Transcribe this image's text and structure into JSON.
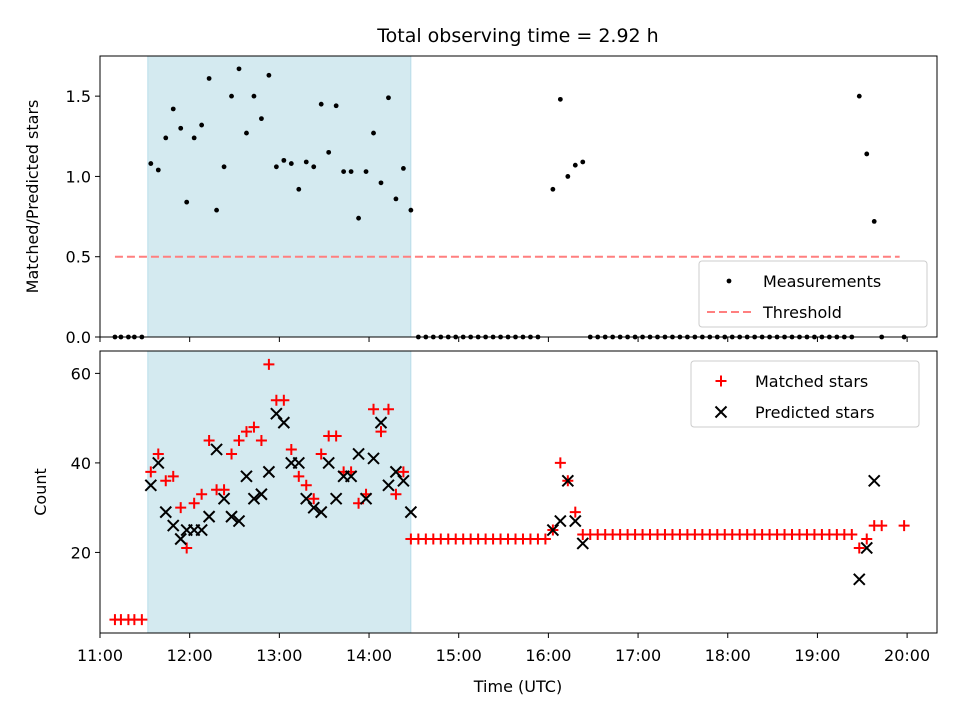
{
  "title": "Total observing time = 2.92 h",
  "xlabel": "Time (UTC)",
  "highlight_color": "#d4eaf0",
  "chart_data": [
    {
      "type": "scatter",
      "ylabel": "Matched/Predicted stars",
      "xlim": [
        "11:00",
        "20:20"
      ],
      "ylim": [
        0,
        1.75
      ],
      "yticks": [
        "0.0",
        "0.5",
        "1.0",
        "1.5"
      ],
      "xticks": [
        "11:00",
        "12:00",
        "13:00",
        "14:00",
        "15:00",
        "16:00",
        "17:00",
        "18:00",
        "19:00",
        "20:00"
      ],
      "highlight_span": [
        "11:32",
        "14:28"
      ],
      "legend_position": "lower right",
      "series": [
        {
          "name": "Measurements",
          "marker": "dot",
          "color": "#000000",
          "points": [
            [
              "11:10",
              0
            ],
            [
              "11:14",
              0
            ],
            [
              "11:19",
              0
            ],
            [
              "11:23",
              0
            ],
            [
              "11:28",
              0
            ],
            [
              "11:34",
              1.08
            ],
            [
              "11:39",
              1.04
            ],
            [
              "11:44",
              1.24
            ],
            [
              "11:49",
              1.42
            ],
            [
              "11:54",
              1.3
            ],
            [
              "11:58",
              0.84
            ],
            [
              "12:03",
              1.24
            ],
            [
              "12:08",
              1.32
            ],
            [
              "12:13",
              1.61
            ],
            [
              "12:18",
              0.79
            ],
            [
              "12:23",
              1.06
            ],
            [
              "12:28",
              1.5
            ],
            [
              "12:33",
              1.67
            ],
            [
              "12:38",
              1.27
            ],
            [
              "12:43",
              1.5
            ],
            [
              "12:48",
              1.36
            ],
            [
              "12:53",
              1.63
            ],
            [
              "12:58",
              1.06
            ],
            [
              "13:03",
              1.1
            ],
            [
              "13:08",
              1.08
            ],
            [
              "13:13",
              0.92
            ],
            [
              "13:18",
              1.09
            ],
            [
              "13:23",
              1.06
            ],
            [
              "13:28",
              1.45
            ],
            [
              "13:33",
              1.15
            ],
            [
              "13:38",
              1.44
            ],
            [
              "13:43",
              1.03
            ],
            [
              "13:48",
              1.03
            ],
            [
              "13:53",
              0.74
            ],
            [
              "13:58",
              1.03
            ],
            [
              "14:03",
              1.27
            ],
            [
              "14:08",
              0.96
            ],
            [
              "14:13",
              1.49
            ],
            [
              "14:18",
              0.86
            ],
            [
              "14:23",
              1.05
            ],
            [
              "14:28",
              0.79
            ],
            [
              "14:33",
              0
            ],
            [
              "14:38",
              0
            ],
            [
              "14:43",
              0
            ],
            [
              "14:48",
              0
            ],
            [
              "14:53",
              0
            ],
            [
              "14:58",
              0
            ],
            [
              "15:03",
              0
            ],
            [
              "15:08",
              0
            ],
            [
              "15:13",
              0
            ],
            [
              "15:18",
              0
            ],
            [
              "15:23",
              0
            ],
            [
              "15:28",
              0
            ],
            [
              "15:33",
              0
            ],
            [
              "15:38",
              0
            ],
            [
              "15:43",
              0
            ],
            [
              "15:48",
              0
            ],
            [
              "15:53",
              0
            ],
            [
              "16:03",
              0.92
            ],
            [
              "16:08",
              1.48
            ],
            [
              "16:13",
              1.0
            ],
            [
              "16:18",
              1.07
            ],
            [
              "16:23",
              1.09
            ],
            [
              "16:28",
              0
            ],
            [
              "16:33",
              0
            ],
            [
              "16:38",
              0
            ],
            [
              "16:43",
              0
            ],
            [
              "16:48",
              0
            ],
            [
              "16:53",
              0
            ],
            [
              "16:58",
              0
            ],
            [
              "17:03",
              0
            ],
            [
              "17:08",
              0
            ],
            [
              "17:13",
              0
            ],
            [
              "17:18",
              0
            ],
            [
              "17:23",
              0
            ],
            [
              "17:28",
              0
            ],
            [
              "17:33",
              0
            ],
            [
              "17:38",
              0
            ],
            [
              "17:43",
              0
            ],
            [
              "17:48",
              0
            ],
            [
              "17:53",
              0
            ],
            [
              "17:58",
              0
            ],
            [
              "18:03",
              0
            ],
            [
              "18:08",
              0
            ],
            [
              "18:13",
              0
            ],
            [
              "18:18",
              0
            ],
            [
              "18:23",
              0
            ],
            [
              "18:28",
              0
            ],
            [
              "18:33",
              0
            ],
            [
              "18:38",
              0
            ],
            [
              "18:43",
              0
            ],
            [
              "18:48",
              0
            ],
            [
              "18:53",
              0
            ],
            [
              "18:58",
              0
            ],
            [
              "19:03",
              0
            ],
            [
              "19:08",
              0
            ],
            [
              "19:13",
              0
            ],
            [
              "19:18",
              0
            ],
            [
              "19:23",
              0
            ],
            [
              "19:28",
              1.5
            ],
            [
              "19:33",
              1.14
            ],
            [
              "19:38",
              0.72
            ],
            [
              "19:43",
              0
            ],
            [
              "19:58",
              0
            ]
          ]
        },
        {
          "name": "Threshold",
          "marker": "dashed-line",
          "color": "#ff7f7f",
          "points": [
            [
              "11:10",
              0.5
            ],
            [
              "19:55",
              0.5
            ]
          ]
        }
      ]
    },
    {
      "type": "scatter",
      "ylabel": "Count",
      "xlabel": "Time (UTC)",
      "xlim": [
        "11:00",
        "20:20"
      ],
      "ylim": [
        2,
        65
      ],
      "yticks": [
        "20",
        "40",
        "60"
      ],
      "xticks": [
        "11:00",
        "12:00",
        "13:00",
        "14:00",
        "15:00",
        "16:00",
        "17:00",
        "18:00",
        "19:00",
        "20:00"
      ],
      "highlight_span": [
        "11:32",
        "14:28"
      ],
      "legend_position": "upper right",
      "series": [
        {
          "name": "Matched stars",
          "marker": "plus",
          "color": "#ff0000",
          "points": [
            [
              "11:10",
              5
            ],
            [
              "11:14",
              5
            ],
            [
              "11:19",
              5
            ],
            [
              "11:23",
              5
            ],
            [
              "11:28",
              5
            ],
            [
              "11:34",
              38
            ],
            [
              "11:39",
              42
            ],
            [
              "11:44",
              36
            ],
            [
              "11:49",
              37
            ],
            [
              "11:54",
              30
            ],
            [
              "11:58",
              21
            ],
            [
              "12:03",
              31
            ],
            [
              "12:08",
              33
            ],
            [
              "12:13",
              45
            ],
            [
              "12:18",
              34
            ],
            [
              "12:23",
              34
            ],
            [
              "12:28",
              42
            ],
            [
              "12:33",
              45
            ],
            [
              "12:38",
              47
            ],
            [
              "12:43",
              48
            ],
            [
              "12:48",
              45
            ],
            [
              "12:53",
              62
            ],
            [
              "12:58",
              54
            ],
            [
              "13:03",
              54
            ],
            [
              "13:08",
              43
            ],
            [
              "13:13",
              37
            ],
            [
              "13:18",
              35
            ],
            [
              "13:23",
              32
            ],
            [
              "13:28",
              42
            ],
            [
              "13:33",
              46
            ],
            [
              "13:38",
              46
            ],
            [
              "13:43",
              38
            ],
            [
              "13:48",
              38
            ],
            [
              "13:53",
              31
            ],
            [
              "13:58",
              33
            ],
            [
              "14:03",
              52
            ],
            [
              "14:08",
              47
            ],
            [
              "14:13",
              52
            ],
            [
              "14:18",
              33
            ],
            [
              "14:23",
              38
            ],
            [
              "14:28",
              23
            ],
            [
              "14:33",
              23
            ],
            [
              "14:38",
              23
            ],
            [
              "14:43",
              23
            ],
            [
              "14:48",
              23
            ],
            [
              "14:53",
              23
            ],
            [
              "14:58",
              23
            ],
            [
              "15:03",
              23
            ],
            [
              "15:08",
              23
            ],
            [
              "15:13",
              23
            ],
            [
              "15:18",
              23
            ],
            [
              "15:23",
              23
            ],
            [
              "15:28",
              23
            ],
            [
              "15:33",
              23
            ],
            [
              "15:38",
              23
            ],
            [
              "15:43",
              23
            ],
            [
              "15:48",
              23
            ],
            [
              "15:53",
              23
            ],
            [
              "15:58",
              23
            ],
            [
              "16:03",
              25
            ],
            [
              "16:08",
              40
            ],
            [
              "16:13",
              36
            ],
            [
              "16:18",
              29
            ],
            [
              "16:23",
              24
            ],
            [
              "16:28",
              24
            ],
            [
              "16:33",
              24
            ],
            [
              "16:38",
              24
            ],
            [
              "16:43",
              24
            ],
            [
              "16:48",
              24
            ],
            [
              "16:53",
              24
            ],
            [
              "16:58",
              24
            ],
            [
              "17:03",
              24
            ],
            [
              "17:08",
              24
            ],
            [
              "17:13",
              24
            ],
            [
              "17:18",
              24
            ],
            [
              "17:23",
              24
            ],
            [
              "17:28",
              24
            ],
            [
              "17:33",
              24
            ],
            [
              "17:38",
              24
            ],
            [
              "17:43",
              24
            ],
            [
              "17:48",
              24
            ],
            [
              "17:53",
              24
            ],
            [
              "17:58",
              24
            ],
            [
              "18:03",
              24
            ],
            [
              "18:08",
              24
            ],
            [
              "18:13",
              24
            ],
            [
              "18:18",
              24
            ],
            [
              "18:23",
              24
            ],
            [
              "18:28",
              24
            ],
            [
              "18:33",
              24
            ],
            [
              "18:38",
              24
            ],
            [
              "18:43",
              24
            ],
            [
              "18:48",
              24
            ],
            [
              "18:53",
              24
            ],
            [
              "18:58",
              24
            ],
            [
              "19:03",
              24
            ],
            [
              "19:08",
              24
            ],
            [
              "19:13",
              24
            ],
            [
              "19:18",
              24
            ],
            [
              "19:23",
              24
            ],
            [
              "19:28",
              21
            ],
            [
              "19:33",
              23
            ],
            [
              "19:38",
              26
            ],
            [
              "19:43",
              26
            ],
            [
              "19:58",
              26
            ]
          ]
        },
        {
          "name": "Predicted stars",
          "marker": "x",
          "color": "#000000",
          "points": [
            [
              "11:34",
              35
            ],
            [
              "11:39",
              40
            ],
            [
              "11:44",
              29
            ],
            [
              "11:49",
              26
            ],
            [
              "11:54",
              23
            ],
            [
              "11:58",
              25
            ],
            [
              "12:03",
              25
            ],
            [
              "12:08",
              25
            ],
            [
              "12:13",
              28
            ],
            [
              "12:18",
              43
            ],
            [
              "12:23",
              32
            ],
            [
              "12:28",
              28
            ],
            [
              "12:33",
              27
            ],
            [
              "12:38",
              37
            ],
            [
              "12:43",
              32
            ],
            [
              "12:48",
              33
            ],
            [
              "12:53",
              38
            ],
            [
              "12:58",
              51
            ],
            [
              "13:03",
              49
            ],
            [
              "13:08",
              40
            ],
            [
              "13:13",
              40
            ],
            [
              "13:18",
              32
            ],
            [
              "13:23",
              30
            ],
            [
              "13:28",
              29
            ],
            [
              "13:33",
              40
            ],
            [
              "13:38",
              32
            ],
            [
              "13:43",
              37
            ],
            [
              "13:48",
              37
            ],
            [
              "13:53",
              42
            ],
            [
              "13:58",
              32
            ],
            [
              "14:03",
              41
            ],
            [
              "14:08",
              49
            ],
            [
              "14:13",
              35
            ],
            [
              "14:18",
              38
            ],
            [
              "14:23",
              36
            ],
            [
              "14:28",
              29
            ],
            [
              "16:03",
              25
            ],
            [
              "16:08",
              27
            ],
            [
              "16:13",
              36
            ],
            [
              "16:18",
              27
            ],
            [
              "16:23",
              22
            ],
            [
              "19:28",
              14
            ],
            [
              "19:33",
              21
            ],
            [
              "19:38",
              36
            ]
          ]
        }
      ]
    }
  ]
}
